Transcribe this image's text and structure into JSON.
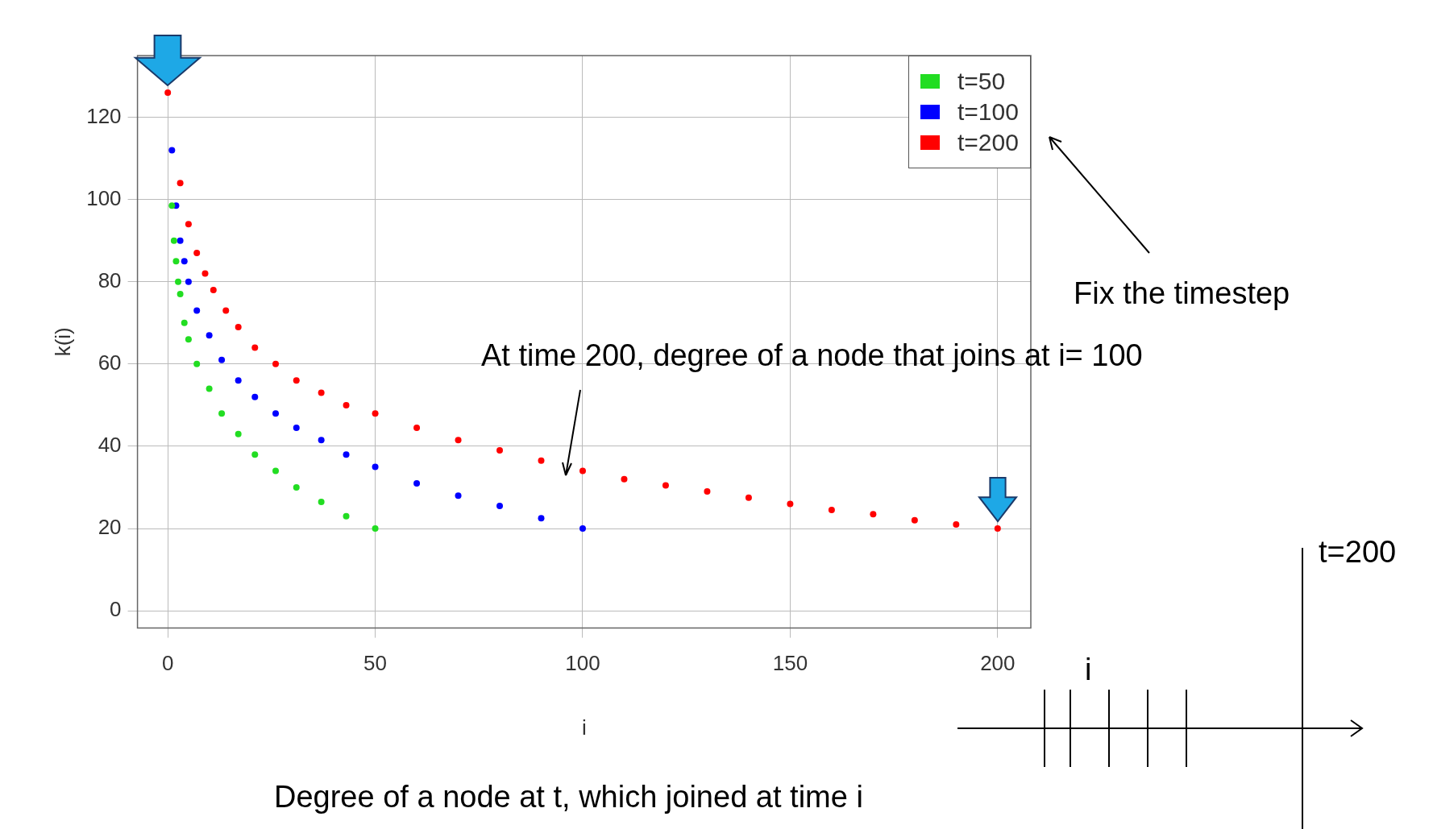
{
  "chart_data": {
    "type": "scatter",
    "xlabel": "i",
    "ylabel": "k(i)",
    "xlim": [
      -7.3,
      208
    ],
    "xticks": [
      0,
      50,
      100,
      150,
      200
    ],
    "ylim": [
      -4.2,
      135
    ],
    "yticks": [
      0,
      20,
      40,
      60,
      80,
      100,
      120
    ],
    "grid": true,
    "legend": "top right",
    "marker": "circle",
    "series": [
      {
        "name": "t=50",
        "color": "#22dd22",
        "x": [
          1,
          1.5,
          2,
          2.5,
          3,
          4,
          5,
          7,
          10,
          13,
          17,
          21,
          26,
          31,
          37,
          43,
          50
        ],
        "values": [
          98.5,
          90,
          85,
          80,
          77,
          70,
          66,
          60,
          54,
          48,
          43,
          38,
          34,
          30,
          26.5,
          23,
          20
        ]
      },
      {
        "name": "t=100",
        "color": "#0000ff",
        "x": [
          1,
          2,
          3,
          4,
          5,
          7,
          10,
          13,
          17,
          21,
          26,
          31,
          37,
          43,
          50,
          60,
          70,
          80,
          90,
          100
        ],
        "values": [
          112,
          98.5,
          90,
          85,
          80,
          73,
          67,
          61,
          56,
          52,
          48,
          44.5,
          41.5,
          38,
          35,
          31,
          28,
          25.5,
          22.5,
          20
        ]
      },
      {
        "name": "t=200",
        "color": "#ff0000",
        "x": [
          0,
          3,
          5,
          7,
          9,
          11,
          14,
          17,
          21,
          26,
          31,
          37,
          43,
          50,
          60,
          70,
          80,
          90,
          100,
          110,
          120,
          130,
          140,
          150,
          160,
          170,
          180,
          190,
          200
        ],
        "values": [
          126,
          104,
          94,
          87,
          82,
          78,
          73,
          69,
          64,
          60,
          56,
          53,
          50,
          48,
          44.5,
          41.5,
          39,
          36.5,
          34,
          32,
          30.5,
          29,
          27.5,
          26,
          24.5,
          23.5,
          22,
          21,
          20
        ]
      }
    ],
    "annotations": [
      "Fix the timestep",
      "At time 200, degree of a node that joins at i= 100",
      "Degree of a node at t, which joined at time i",
      "i",
      "t=200"
    ]
  }
}
